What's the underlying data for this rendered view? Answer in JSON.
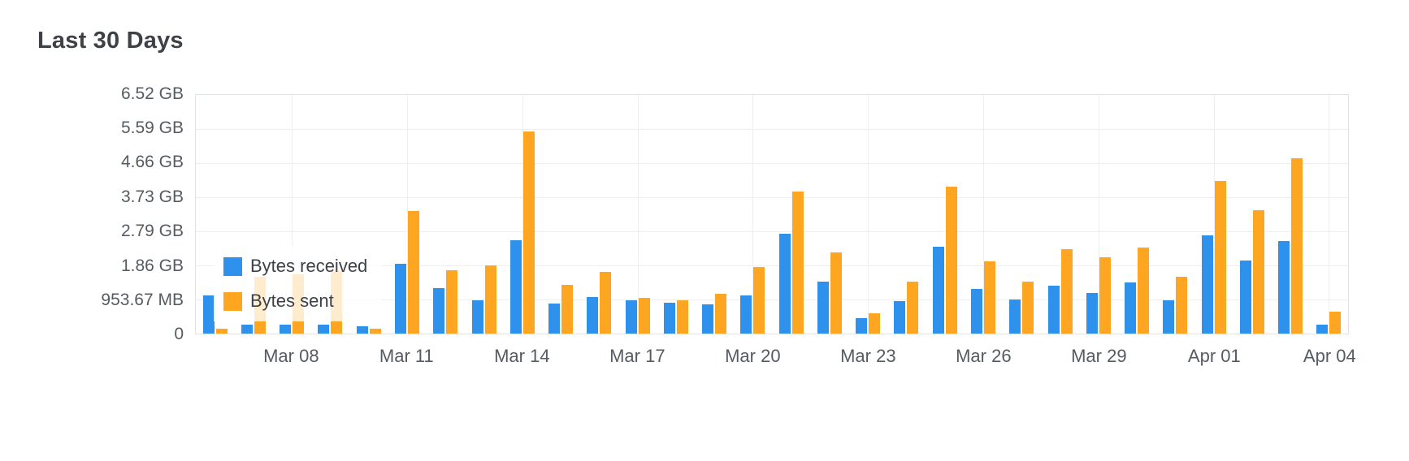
{
  "title": "Last 30 Days",
  "chart_data": {
    "type": "bar",
    "title": "Last 30 Days",
    "unit": "GB",
    "ylim": [
      0,
      6.52
    ],
    "grid": true,
    "legend_position": "inside-bottom-left",
    "y_tick_labels": [
      "6.52 GB",
      "5.59 GB",
      "4.66 GB",
      "3.73 GB",
      "2.79 GB",
      "1.86 GB",
      "953.67 MB",
      "0"
    ],
    "y_tick_values": [
      6.52,
      5.59,
      4.66,
      3.73,
      2.79,
      1.86,
      0.9313,
      0
    ],
    "x_tick_labels": [
      "Mar 08",
      "Mar 11",
      "Mar 14",
      "Mar 17",
      "Mar 20",
      "Mar 23",
      "Mar 26",
      "Mar 29",
      "Apr 01",
      "Apr 04"
    ],
    "categories": [
      "Mar 06",
      "Mar 07",
      "Mar 08",
      "Mar 09",
      "Mar 10",
      "Mar 11",
      "Mar 12",
      "Mar 13",
      "Mar 14",
      "Mar 15",
      "Mar 16",
      "Mar 17",
      "Mar 18",
      "Mar 19",
      "Mar 20",
      "Mar 21",
      "Mar 22",
      "Mar 23",
      "Mar 24",
      "Mar 25",
      "Mar 26",
      "Mar 27",
      "Mar 28",
      "Mar 29",
      "Mar 30",
      "Mar 31",
      "Apr 01",
      "Apr 02",
      "Apr 03",
      "Apr 04"
    ],
    "series": [
      {
        "name": "Bytes received",
        "color": "#2e92ec",
        "values": [
          1.05,
          0.24,
          0.25,
          0.24,
          0.19,
          1.9,
          1.25,
          0.92,
          2.55,
          0.83,
          1.0,
          0.92,
          0.84,
          0.8,
          1.05,
          2.73,
          1.42,
          0.42,
          0.88,
          2.37,
          1.22,
          0.93,
          1.3,
          1.12,
          1.4,
          0.92,
          2.68,
          2.0,
          2.52,
          0.25
        ]
      },
      {
        "name": "Bytes sent",
        "color": "#fea622",
        "values": [
          0.13,
          1.55,
          1.63,
          1.7,
          0.14,
          3.35,
          1.72,
          1.86,
          5.52,
          1.32,
          1.68,
          0.97,
          0.9,
          1.08,
          1.82,
          3.88,
          2.22,
          0.55,
          1.42,
          4.02,
          1.97,
          1.43,
          2.3,
          2.08,
          2.35,
          1.55,
          4.18,
          3.38,
          4.78,
          0.6
        ]
      }
    ]
  },
  "colors": {
    "received": "#2e92ec",
    "sent": "#fea622",
    "grid": "#ededf2",
    "plot_border": "#dfe2e7",
    "axis_text": "#565b61",
    "title_text": "#3e4247"
  }
}
